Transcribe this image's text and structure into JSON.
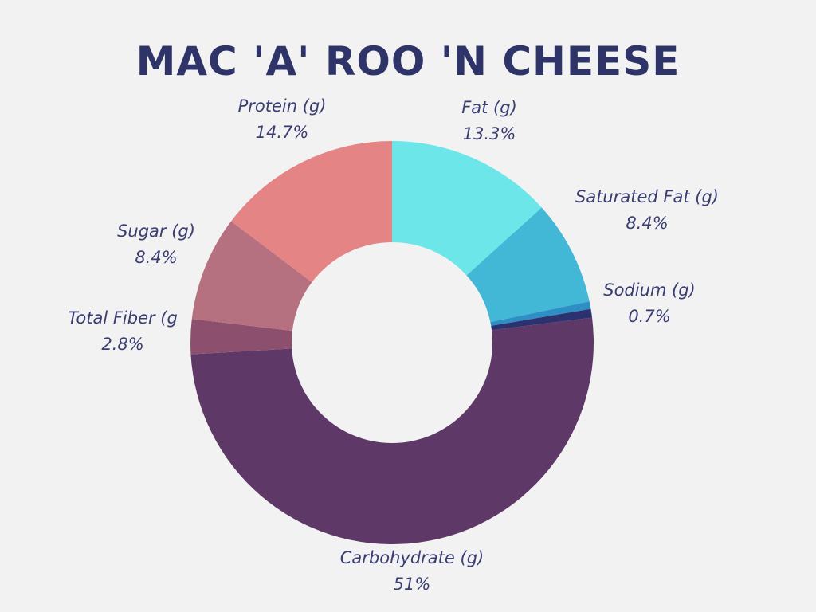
{
  "chart_data": {
    "type": "pie",
    "variant": "donut",
    "title": "MAC 'A' ROO 'N CHEESE",
    "legend": "none",
    "slices": [
      {
        "label": "Fat (g)",
        "value_label": "13.3%",
        "value": 13.3,
        "color": "#6ce6e8"
      },
      {
        "label": "Saturated Fat (g)",
        "value_label": "8.4%",
        "value": 8.4,
        "color": "#42b8d6"
      },
      {
        "label": "",
        "value_label": "",
        "value": 0.6,
        "color": "#2f8fc4"
      },
      {
        "label": "Sodium (g)",
        "value_label": "0.7%",
        "value": 0.7,
        "color": "#2c3270"
      },
      {
        "label": "Carbohydrate (g)",
        "value_label": "51%",
        "value": 51,
        "color": "#5e3866"
      },
      {
        "label": "Total Fiber (g",
        "value_label": "2.8%",
        "value": 2.8,
        "color": "#8c506e"
      },
      {
        "label": "Sugar (g)",
        "value_label": "8.4%",
        "value": 8.4,
        "color": "#b5717f"
      },
      {
        "label": "Protein (g)",
        "value_label": "14.7%",
        "value": 14.7,
        "color": "#e48484"
      }
    ]
  }
}
